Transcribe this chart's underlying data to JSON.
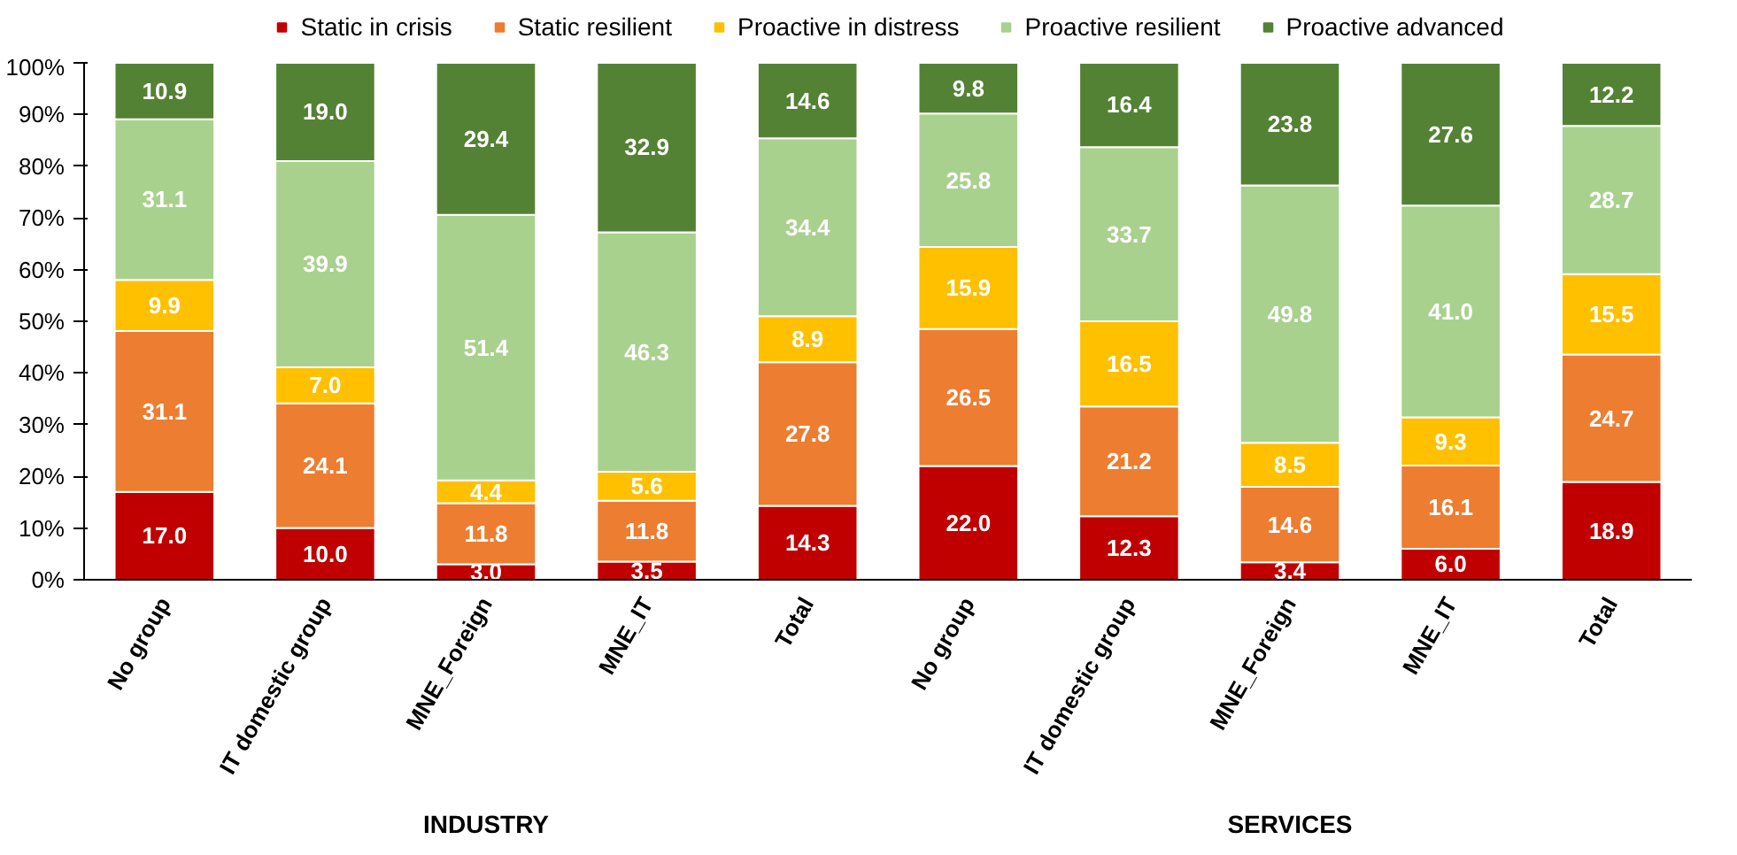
{
  "chart_data": {
    "type": "bar",
    "stacked": true,
    "legend": "top",
    "grid": false,
    "categories": [
      "No group",
      "IT domestic group",
      "MNE_Foreign",
      "MNE_IT",
      "Total",
      "No group",
      "IT domestic group",
      "MNE_Foreign",
      "MNE_IT",
      "Total"
    ],
    "series": [
      {
        "name": "Static in crisis",
        "color": "#c00000",
        "values": [
          17.0,
          10.0,
          3.0,
          3.5,
          14.3,
          22.0,
          12.3,
          3.4,
          6.0,
          18.9
        ],
        "value_labels": [
          "17.0",
          "10.0",
          "3.0",
          "3.5",
          "14.3",
          "22.0",
          "12.3",
          "3.4",
          "6.0",
          "18.9"
        ]
      },
      {
        "name": "Static resilient",
        "color": "#ed7d31",
        "values": [
          31.1,
          24.1,
          11.8,
          11.8,
          27.8,
          26.5,
          21.2,
          14.6,
          16.1,
          24.7
        ],
        "value_labels": [
          "31.1",
          "24.1",
          "11.8",
          "11.8",
          "27.8",
          "26.5",
          "21.2",
          "14.6",
          "16.1",
          "24.7"
        ]
      },
      {
        "name": "Proactive in distress",
        "color": "#ffc000",
        "values": [
          9.9,
          7.0,
          4.4,
          5.6,
          8.9,
          15.9,
          16.5,
          8.5,
          9.3,
          15.5
        ],
        "value_labels": [
          "9.9",
          "7.0",
          "4.4",
          "5.6",
          "8.9",
          "15.9",
          "16.5",
          "8.5",
          "9.3",
          "15.5"
        ]
      },
      {
        "name": "Proactive resilient",
        "color": "#a9d18e",
        "values": [
          31.1,
          39.9,
          51.4,
          46.3,
          34.4,
          25.8,
          33.7,
          49.8,
          41.0,
          28.7
        ],
        "value_labels": [
          "31.1",
          "39.9",
          "51.4",
          "46.3",
          "34.4",
          "25.8",
          "33.7",
          "49.8",
          "41.0",
          "28.7"
        ]
      },
      {
        "name": "Proactive advanced",
        "color": "#548235",
        "values": [
          10.9,
          19.0,
          29.4,
          32.9,
          14.6,
          9.8,
          16.4,
          23.8,
          27.6,
          12.2
        ],
        "value_labels": [
          "10.9",
          "19.0",
          "29.4",
          "32.9",
          "14.6",
          "9.8",
          "16.4",
          "23.8",
          "27.6",
          "12.2"
        ]
      }
    ],
    "ylim": [
      0,
      100
    ],
    "yticks": [
      {
        "value": 0,
        "label": "0%"
      },
      {
        "value": 10,
        "label": "10%"
      },
      {
        "value": 20,
        "label": "20%"
      },
      {
        "value": 30,
        "label": "30%"
      },
      {
        "value": 40,
        "label": "40%"
      },
      {
        "value": 50,
        "label": "50%"
      },
      {
        "value": 60,
        "label": "60%"
      },
      {
        "value": 70,
        "label": "70%"
      },
      {
        "value": 80,
        "label": "80%"
      },
      {
        "value": 90,
        "label": "90%"
      },
      {
        "value": 100,
        "label": "100%"
      }
    ],
    "annotations": [
      "INDUSTRY",
      "SERVICES"
    ]
  }
}
